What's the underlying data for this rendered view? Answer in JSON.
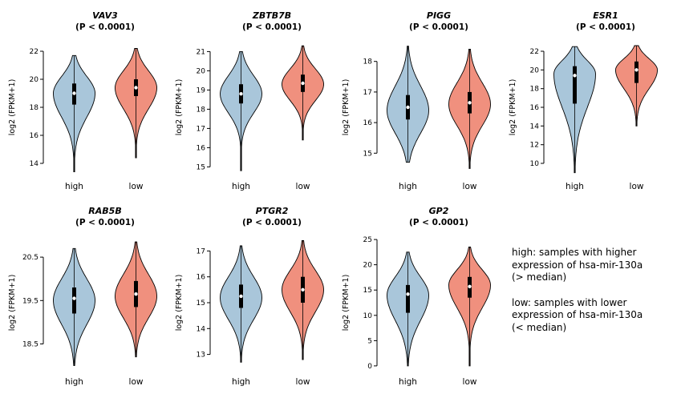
{
  "note": {
    "high": "high: samples with higher\nexpression of hsa-mir-130a\n(> median)",
    "low": "low: samples with lower\nexpression of hsa-mir-130a\n(< median)"
  },
  "colors": {
    "high": "#a9c6da",
    "low": "#f0907e"
  },
  "chart_data": [
    {
      "type": "violin",
      "title": "VAV3",
      "subtitle": "(P < 0.0001)",
      "ylabel": "log2 (FPKM+1)",
      "categories": [
        "high",
        "low"
      ],
      "yticks": [
        14,
        16,
        18,
        20,
        22
      ],
      "ylim": [
        13.2,
        22.8
      ],
      "series": [
        {
          "name": "high",
          "color": "#a9c6da",
          "min": 13.4,
          "max": 21.7,
          "mode": 19.0,
          "bw_low": 1.7,
          "bw_high": 1.2,
          "q1": 18.2,
          "q3": 19.7,
          "median": 19.0
        },
        {
          "name": "low",
          "color": "#f0907e",
          "min": 14.4,
          "max": 22.2,
          "mode": 19.4,
          "bw_low": 1.5,
          "bw_high": 1.2,
          "q1": 18.8,
          "q3": 20.0,
          "median": 19.4
        }
      ]
    },
    {
      "type": "violin",
      "title": "ZBTB7B",
      "subtitle": "(P < 0.0001)",
      "ylabel": "log2 (FPKM+1)",
      "categories": [
        "high",
        "low"
      ],
      "yticks": [
        15,
        16,
        17,
        18,
        19,
        20,
        21
      ],
      "ylim": [
        14.6,
        21.6
      ],
      "series": [
        {
          "name": "high",
          "color": "#a9c6da",
          "min": 14.8,
          "max": 21.0,
          "mode": 18.8,
          "bw_low": 1.0,
          "bw_high": 0.95,
          "q1": 18.3,
          "q3": 19.3,
          "median": 18.8
        },
        {
          "name": "low",
          "color": "#f0907e",
          "min": 16.4,
          "max": 21.3,
          "mode": 19.3,
          "bw_low": 0.85,
          "bw_high": 0.8,
          "q1": 18.9,
          "q3": 19.8,
          "median": 19.35
        }
      ]
    },
    {
      "type": "violin",
      "title": "PIGG",
      "subtitle": "(P < 0.0001)",
      "ylabel": "log2 (FPKM+1)",
      "categories": [
        "high",
        "low"
      ],
      "yticks": [
        15,
        16,
        17,
        18
      ],
      "ylim": [
        14.3,
        18.7
      ],
      "series": [
        {
          "name": "high",
          "color": "#a9c6da",
          "min": 14.7,
          "max": 18.5,
          "mode": 16.4,
          "bw_low": 0.75,
          "bw_high": 0.8,
          "q1": 16.1,
          "q3": 16.9,
          "median": 16.5
        },
        {
          "name": "low",
          "color": "#f0907e",
          "min": 14.5,
          "max": 18.4,
          "mode": 16.6,
          "bw_low": 0.7,
          "bw_high": 0.7,
          "q1": 16.3,
          "q3": 17.0,
          "median": 16.65
        }
      ]
    },
    {
      "type": "violin",
      "title": "ESR1",
      "subtitle": "(P < 0.0001)",
      "ylabel": "log2 (FPKM+1)",
      "categories": [
        "high",
        "low"
      ],
      "yticks": [
        10,
        12,
        14,
        16,
        18,
        20,
        22
      ],
      "ylim": [
        8.8,
        23.2
      ],
      "series": [
        {
          "name": "high",
          "color": "#a9c6da",
          "min": 9.0,
          "max": 22.5,
          "mode": 19.6,
          "bw_low": 3.6,
          "bw_high": 1.4,
          "q1": 16.4,
          "q3": 20.4,
          "median": 19.4
        },
        {
          "name": "low",
          "color": "#f0907e",
          "min": 14.0,
          "max": 22.6,
          "mode": 20.0,
          "bw_low": 2.0,
          "bw_high": 1.2,
          "q1": 18.6,
          "q3": 20.9,
          "median": 20.0
        }
      ]
    },
    {
      "type": "violin",
      "title": "RAB5B",
      "subtitle": "(P < 0.0001)",
      "ylabel": "log2 (FPKM+1)",
      "categories": [
        "high",
        "low"
      ],
      "yticks": [
        18.5,
        19.5,
        20.5
      ],
      "ylim": [
        17.9,
        21.0
      ],
      "series": [
        {
          "name": "high",
          "color": "#a9c6da",
          "min": 18.0,
          "max": 20.7,
          "mode": 19.5,
          "bw_low": 0.55,
          "bw_high": 0.5,
          "q1": 19.2,
          "q3": 19.8,
          "median": 19.55
        },
        {
          "name": "low",
          "color": "#f0907e",
          "min": 18.2,
          "max": 20.85,
          "mode": 19.6,
          "bw_low": 0.5,
          "bw_high": 0.5,
          "q1": 19.35,
          "q3": 19.95,
          "median": 19.65
        }
      ]
    },
    {
      "type": "violin",
      "title": "PTGR2",
      "subtitle": "(P < 0.0001)",
      "ylabel": "log2 (FPKM+1)",
      "categories": [
        "high",
        "low"
      ],
      "yticks": [
        13,
        14,
        15,
        16,
        17
      ],
      "ylim": [
        12.4,
        17.6
      ],
      "series": [
        {
          "name": "high",
          "color": "#a9c6da",
          "min": 12.7,
          "max": 17.2,
          "mode": 15.2,
          "bw_low": 0.85,
          "bw_high": 0.8,
          "q1": 14.8,
          "q3": 15.7,
          "median": 15.25
        },
        {
          "name": "low",
          "color": "#f0907e",
          "min": 12.8,
          "max": 17.4,
          "mode": 15.5,
          "bw_low": 0.85,
          "bw_high": 0.75,
          "q1": 15.0,
          "q3": 16.0,
          "median": 15.5
        }
      ]
    },
    {
      "type": "violin",
      "title": "GP2",
      "subtitle": "(P < 0.0001)",
      "ylabel": "log2 (FPKM+1)",
      "categories": [
        "high",
        "low"
      ],
      "yticks": [
        0,
        5,
        10,
        15,
        20,
        25
      ],
      "ylim": [
        -0.8,
        25.8
      ],
      "series": [
        {
          "name": "high",
          "color": "#a9c6da",
          "min": 0.0,
          "max": 22.5,
          "mode": 14.0,
          "bw_low": 5.0,
          "bw_high": 3.6,
          "q1": 10.5,
          "q3": 16.0,
          "median": 14.2
        },
        {
          "name": "low",
          "color": "#f0907e",
          "min": 0.0,
          "max": 23.5,
          "mode": 16.0,
          "bw_low": 4.5,
          "bw_high": 3.0,
          "q1": 13.5,
          "q3": 17.6,
          "median": 15.7
        }
      ]
    }
  ]
}
